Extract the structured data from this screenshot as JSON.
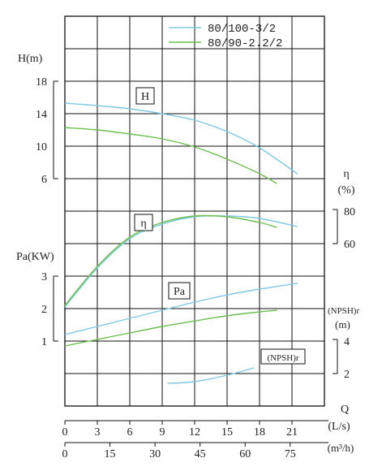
{
  "chart_data": {
    "type": "line",
    "legend": {
      "placement": "top-right",
      "entries": [
        {
          "name": "80/100-3/2",
          "color": "#7ec8e3"
        },
        {
          "name": "80/90-2.2/2",
          "color": "#6cbf4f"
        }
      ]
    },
    "axes": {
      "x_ls": {
        "label": "(L/s)",
        "symbol": "Q",
        "ticks": [
          "0",
          "3",
          "6",
          "9",
          "12",
          "15",
          "18",
          "21"
        ],
        "range": [
          0,
          24
        ]
      },
      "x_m3h": {
        "label": "(m³/h)",
        "ticks": [
          "0",
          "15",
          "30",
          "45",
          "60",
          "75"
        ],
        "range": [
          0,
          86.4
        ]
      },
      "head": {
        "title": "H(m)",
        "ticks": [
          "18",
          "14",
          "10",
          "6"
        ],
        "range": [
          6,
          18
        ]
      },
      "efficiency": {
        "symbol": "η",
        "unit": "(%)",
        "ticks": [
          "80",
          "60"
        ],
        "range": [
          60,
          80
        ]
      },
      "power": {
        "title": "Pa(KW)",
        "ticks": [
          "3",
          "2",
          "1"
        ],
        "range": [
          1,
          3
        ]
      },
      "npsh": {
        "title": "(NPSH)r",
        "unit": "(m)",
        "ticks": [
          "4",
          "2"
        ],
        "range": [
          2,
          4
        ]
      }
    },
    "curve_labels": {
      "head": "H",
      "efficiency": "η",
      "power": "Pa",
      "npsh": "(NPSH)r"
    },
    "grid": true,
    "series": [
      {
        "name": "80/100-3/2",
        "group": "head",
        "color": "#7ec8e3",
        "x": [
          0,
          3,
          6,
          9,
          12,
          15,
          18,
          21.5
        ],
        "y": [
          15.3,
          15.0,
          14.6,
          14.0,
          13.2,
          11.8,
          9.8,
          6.6
        ]
      },
      {
        "name": "80/90-2.2/2",
        "group": "head",
        "color": "#6cbf4f",
        "x": [
          0,
          3,
          6,
          9,
          12,
          15,
          18,
          19.6
        ],
        "y": [
          12.3,
          12.0,
          11.5,
          10.9,
          9.9,
          8.4,
          6.6,
          5.4
        ]
      },
      {
        "name": "80/100-3/2",
        "group": "efficiency",
        "color": "#7ec8e3",
        "x": [
          0,
          3,
          6,
          9,
          12,
          15,
          18,
          21.5
        ],
        "y": [
          21,
          45,
          63,
          72,
          76.5,
          77,
          75.5,
          70.5
        ]
      },
      {
        "name": "80/90-2.2/2",
        "group": "efficiency",
        "color": "#6cbf4f",
        "x": [
          0,
          3,
          6,
          9,
          12,
          15,
          18,
          19.6
        ],
        "y": [
          22,
          46,
          64,
          73,
          77,
          76.5,
          73,
          70
        ]
      },
      {
        "name": "80/100-3/2",
        "group": "power",
        "color": "#7ec8e3",
        "x": [
          0,
          3,
          6,
          9,
          12,
          15,
          18,
          21.5
        ],
        "y": [
          1.2,
          1.45,
          1.7,
          1.95,
          2.2,
          2.42,
          2.6,
          2.78
        ]
      },
      {
        "name": "80/90-2.2/2",
        "group": "power",
        "color": "#6cbf4f",
        "x": [
          0,
          3,
          6,
          9,
          12,
          15,
          18,
          19.6
        ],
        "y": [
          0.85,
          1.05,
          1.25,
          1.45,
          1.62,
          1.78,
          1.9,
          1.95
        ]
      },
      {
        "name": "80/100-3/2",
        "group": "npsh",
        "color": "#7ec8e3",
        "x": [
          9.5,
          12,
          15,
          17.5
        ],
        "y": [
          1.4,
          1.5,
          1.9,
          2.35
        ]
      }
    ]
  }
}
